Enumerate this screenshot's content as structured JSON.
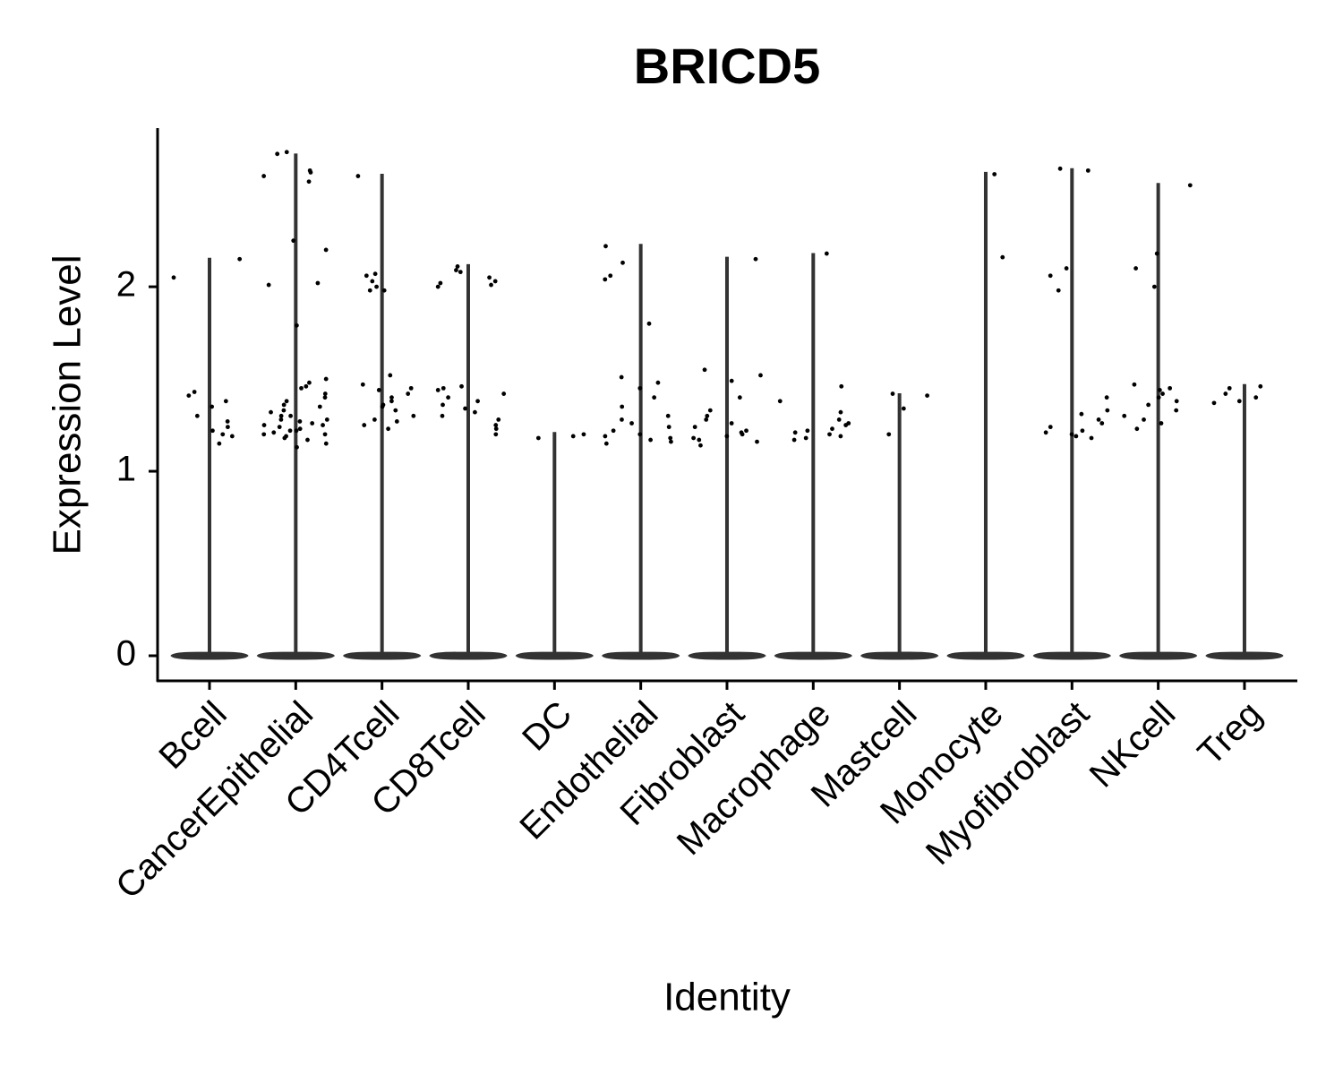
{
  "chart_data": {
    "type": "violin",
    "title": "BRICD5",
    "x_label": "Identity",
    "y_label": "Expression Level",
    "categories": [
      "Bcell",
      "CancerEpithelial",
      "CD4Tcell",
      "CD8Tcell",
      "DC",
      "Endothelial",
      "Fibroblast",
      "Macrophage",
      "Mastcell",
      "Monocyte",
      "Myofibroblast",
      "NKcell",
      "Treg"
    ],
    "violin_max": [
      2.155,
      2.72,
      2.61,
      2.12,
      1.21,
      2.23,
      2.16,
      2.18,
      1.42,
      2.62,
      2.64,
      2.56,
      1.47
    ],
    "points": [
      [
        2.05,
        2.15,
        1.43,
        1.41,
        1.38,
        1.35,
        1.3,
        1.27,
        1.24,
        1.22,
        1.2,
        1.15,
        1.19
      ],
      [
        2.72,
        2.73,
        2.62,
        2.63,
        2.6,
        2.57,
        2.25,
        2.2,
        2.02,
        2.01,
        1.79,
        1.5,
        1.48,
        1.46,
        1.45,
        1.42,
        1.4,
        1.38,
        1.36,
        1.35,
        1.33,
        1.32,
        1.3,
        1.3,
        1.28,
        1.28,
        1.27,
        1.26,
        1.25,
        1.25,
        1.24,
        1.23,
        1.22,
        1.22,
        1.21,
        1.2,
        1.2,
        1.19,
        1.18,
        1.17,
        1.15,
        1.13
      ],
      [
        2.6,
        2.07,
        2.06,
        2.03,
        2.0,
        1.98,
        1.98,
        1.52,
        1.47,
        1.45,
        1.44,
        1.42,
        1.4,
        1.38,
        1.36,
        1.35,
        1.33,
        1.3,
        1.28,
        1.27,
        1.25,
        1.23
      ],
      [
        2.11,
        2.09,
        2.08,
        2.05,
        2.03,
        2.02,
        2.01,
        2.0,
        1.46,
        1.45,
        1.44,
        1.42,
        1.4,
        1.38,
        1.36,
        1.34,
        1.32,
        1.3,
        1.28,
        1.25,
        1.23,
        1.2
      ],
      [
        1.2,
        1.19,
        1.18
      ],
      [
        2.22,
        2.13,
        2.06,
        2.04,
        1.8,
        1.51,
        1.48,
        1.45,
        1.4,
        1.35,
        1.3,
        1.28,
        1.26,
        1.24,
        1.22,
        1.2,
        1.19,
        1.18,
        1.17,
        1.16,
        1.15
      ],
      [
        2.15,
        1.55,
        1.52,
        1.49,
        1.4,
        1.33,
        1.3,
        1.28,
        1.26,
        1.24,
        1.22,
        1.21,
        1.2,
        1.19,
        1.18,
        1.17,
        1.16,
        1.14
      ],
      [
        2.18,
        1.46,
        1.38,
        1.32,
        1.28,
        1.26,
        1.25,
        1.23,
        1.22,
        1.21,
        1.2,
        1.19,
        1.18,
        1.17
      ],
      [
        1.42,
        1.41,
        1.34,
        1.2
      ],
      [
        2.61,
        2.16
      ],
      [
        2.64,
        2.63,
        2.1,
        2.06,
        1.98,
        1.4,
        1.33,
        1.31,
        1.28,
        1.26,
        1.24,
        1.22,
        1.21,
        1.2,
        1.19,
        1.18
      ],
      [
        2.55,
        2.18,
        2.1,
        2.0,
        1.47,
        1.45,
        1.44,
        1.42,
        1.4,
        1.38,
        1.36,
        1.33,
        1.3,
        1.28,
        1.26,
        1.23
      ],
      [
        1.46,
        1.45,
        1.42,
        1.4,
        1.38,
        1.37
      ]
    ],
    "ylim": [
      -0.136,
      2.86
    ],
    "yticks": [
      0,
      1,
      2
    ],
    "color": "#333333",
    "point_color": "#000000"
  }
}
